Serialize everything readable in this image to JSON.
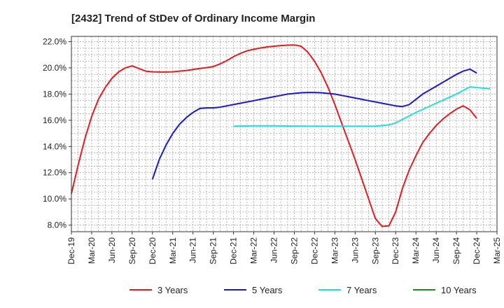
{
  "chart_data": {
    "type": "line",
    "title": "[2432]  Trend of StDev of Ordinary Income Margin",
    "xlabel": "",
    "ylabel": "",
    "x_ticks": [
      "Dec-19",
      "Mar-20",
      "Jun-20",
      "Sep-20",
      "Dec-20",
      "Mar-21",
      "Jun-21",
      "Sep-21",
      "Dec-21",
      "Mar-22",
      "Jun-22",
      "Sep-22",
      "Dec-22",
      "Mar-23",
      "Jun-23",
      "Sep-23",
      "Dec-23",
      "Mar-24",
      "Jun-24",
      "Sep-24",
      "Dec-24",
      "Mar-25"
    ],
    "y_ticks": [
      "8.0%",
      "10.0%",
      "12.0%",
      "14.0%",
      "16.0%",
      "18.0%",
      "20.0%",
      "22.0%"
    ],
    "ylim": [
      7.5,
      22.4
    ],
    "grid": true,
    "legend_position": "bottom",
    "series": [
      {
        "name": "3 Years",
        "color": "#dd1f1f",
        "points": [
          [
            "Dec-19",
            10.4
          ],
          [
            "Jan-20",
            12.6
          ],
          [
            "Feb-20",
            14.6
          ],
          [
            "Mar-20",
            16.3
          ],
          [
            "Apr-20",
            17.6
          ],
          [
            "May-20",
            18.5
          ],
          [
            "Jun-20",
            19.2
          ],
          [
            "Jul-20",
            19.7
          ],
          [
            "Aug-20",
            20.0
          ],
          [
            "Sep-20",
            20.15
          ],
          [
            "Oct-20",
            19.95
          ],
          [
            "Nov-20",
            19.75
          ],
          [
            "Dec-20",
            19.7
          ],
          [
            "Jan-21",
            19.68
          ],
          [
            "Feb-21",
            19.68
          ],
          [
            "Mar-21",
            19.7
          ],
          [
            "Apr-21",
            19.75
          ],
          [
            "May-21",
            19.8
          ],
          [
            "Jun-21",
            19.88
          ],
          [
            "Jul-21",
            19.95
          ],
          [
            "Aug-21",
            20.02
          ],
          [
            "Sep-21",
            20.1
          ],
          [
            "Oct-21",
            20.3
          ],
          [
            "Nov-21",
            20.55
          ],
          [
            "Dec-21",
            20.85
          ],
          [
            "Jan-22",
            21.1
          ],
          [
            "Feb-22",
            21.3
          ],
          [
            "Mar-22",
            21.42
          ],
          [
            "Apr-22",
            21.52
          ],
          [
            "May-22",
            21.6
          ],
          [
            "Jun-22",
            21.65
          ],
          [
            "Jul-22",
            21.7
          ],
          [
            "Aug-22",
            21.73
          ],
          [
            "Sep-22",
            21.75
          ],
          [
            "Oct-22",
            21.65
          ],
          [
            "Nov-22",
            21.2
          ],
          [
            "Dec-22",
            20.5
          ],
          [
            "Jan-23",
            19.6
          ],
          [
            "Feb-23",
            18.5
          ],
          [
            "Mar-23",
            17.2
          ],
          [
            "Apr-23",
            15.8
          ],
          [
            "May-23",
            14.4
          ],
          [
            "Jun-23",
            13.0
          ],
          [
            "Jul-23",
            11.5
          ],
          [
            "Aug-23",
            10.0
          ],
          [
            "Sep-23",
            8.5
          ],
          [
            "Oct-23",
            7.9
          ],
          [
            "Nov-23",
            7.95
          ],
          [
            "Dec-23",
            9.0
          ],
          [
            "Jan-24",
            10.8
          ],
          [
            "Feb-24",
            12.2
          ],
          [
            "Mar-24",
            13.3
          ],
          [
            "Apr-24",
            14.3
          ],
          [
            "May-24",
            15.0
          ],
          [
            "Jun-24",
            15.6
          ],
          [
            "Jul-24",
            16.1
          ],
          [
            "Aug-24",
            16.5
          ],
          [
            "Sep-24",
            16.85
          ],
          [
            "Oct-24",
            17.1
          ],
          [
            "Nov-24",
            16.8
          ],
          [
            "Dec-24",
            16.15
          ]
        ]
      },
      {
        "name": "5 Years",
        "color": "#1a1acc",
        "points": [
          [
            "Dec-20",
            11.5
          ],
          [
            "Jan-21",
            13.0
          ],
          [
            "Feb-21",
            14.1
          ],
          [
            "Mar-21",
            15.0
          ],
          [
            "Apr-21",
            15.7
          ],
          [
            "May-21",
            16.2
          ],
          [
            "Jun-21",
            16.6
          ],
          [
            "Jul-21",
            16.9
          ],
          [
            "Aug-21",
            16.95
          ],
          [
            "Sep-21",
            16.95
          ],
          [
            "Oct-21",
            17.0
          ],
          [
            "Nov-21",
            17.1
          ],
          [
            "Dec-21",
            17.2
          ],
          [
            "Jan-22",
            17.3
          ],
          [
            "Feb-22",
            17.4
          ],
          [
            "Mar-22",
            17.5
          ],
          [
            "Apr-22",
            17.6
          ],
          [
            "May-22",
            17.7
          ],
          [
            "Jun-22",
            17.8
          ],
          [
            "Jul-22",
            17.9
          ],
          [
            "Aug-22",
            18.0
          ],
          [
            "Sep-22",
            18.05
          ],
          [
            "Oct-22",
            18.1
          ],
          [
            "Nov-22",
            18.12
          ],
          [
            "Dec-22",
            18.12
          ],
          [
            "Jan-23",
            18.1
          ],
          [
            "Feb-23",
            18.05
          ],
          [
            "Mar-23",
            18.0
          ],
          [
            "Apr-23",
            17.9
          ],
          [
            "May-23",
            17.8
          ],
          [
            "Jun-23",
            17.7
          ],
          [
            "Jul-23",
            17.6
          ],
          [
            "Aug-23",
            17.5
          ],
          [
            "Sep-23",
            17.4
          ],
          [
            "Oct-23",
            17.3
          ],
          [
            "Nov-23",
            17.2
          ],
          [
            "Dec-23",
            17.1
          ],
          [
            "Jan-24",
            17.05
          ],
          [
            "Feb-24",
            17.2
          ],
          [
            "Mar-24",
            17.6
          ],
          [
            "Apr-24",
            18.0
          ],
          [
            "May-24",
            18.3
          ],
          [
            "Jun-24",
            18.6
          ],
          [
            "Jul-24",
            18.9
          ],
          [
            "Aug-24",
            19.2
          ],
          [
            "Sep-24",
            19.5
          ],
          [
            "Oct-24",
            19.75
          ],
          [
            "Nov-24",
            19.9
          ],
          [
            "Dec-24",
            19.6
          ]
        ]
      },
      {
        "name": "7 Years",
        "color": "#22dddd",
        "points": [
          [
            "Dec-21",
            15.55
          ],
          [
            "Mar-22",
            15.58
          ],
          [
            "Jun-22",
            15.58
          ],
          [
            "Sep-22",
            15.56
          ],
          [
            "Dec-22",
            15.55
          ],
          [
            "Mar-23",
            15.55
          ],
          [
            "Jun-23",
            15.55
          ],
          [
            "Sep-23",
            15.55
          ],
          [
            "Nov-23",
            15.65
          ],
          [
            "Dec-23",
            15.8
          ],
          [
            "Mar-24",
            16.6
          ],
          [
            "Jun-24",
            17.3
          ],
          [
            "Sep-24",
            18.0
          ],
          [
            "Nov-24",
            18.55
          ],
          [
            "Dec-24",
            18.5
          ],
          [
            "Feb-25",
            18.4
          ]
        ]
      },
      {
        "name": "10 Years",
        "color": "#228822",
        "points": []
      }
    ]
  }
}
